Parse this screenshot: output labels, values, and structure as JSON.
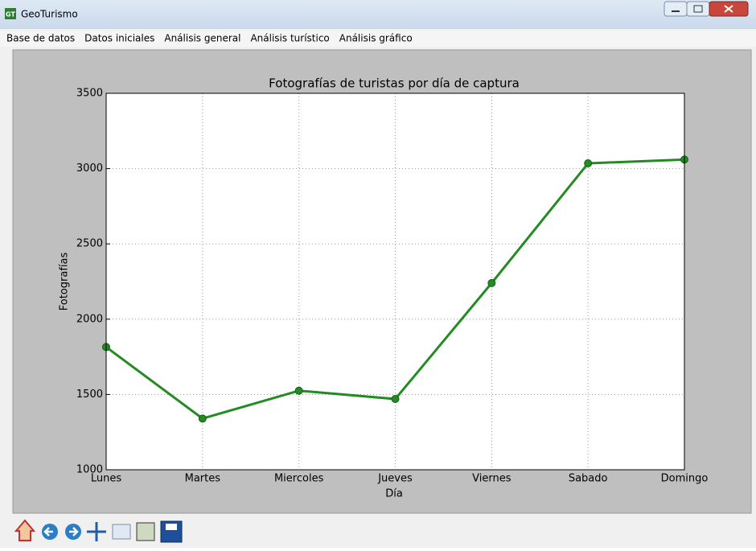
{
  "window": {
    "title": "GeoTurismo",
    "app_icon": "GT"
  },
  "menu": [
    "Base de datos",
    "Datos iniciales",
    "Análisis general",
    "Análisis turístico",
    "Análisis gráfico"
  ],
  "chart_data": {
    "type": "line",
    "title": "Fotografías de turistas por día de captura",
    "x_label": "Día",
    "y_label": "Fotografías",
    "categories": [
      "Lunes",
      "Martes",
      "Miercoles",
      "Jueves",
      "Viernes",
      "Sabado",
      "Domingo"
    ],
    "series": [
      {
        "name": "Fotografías",
        "color": "#228b22",
        "values": [
          1815,
          1340,
          1525,
          1470,
          2240,
          3035,
          3060
        ]
      }
    ],
    "ylim": [
      1000,
      3500
    ],
    "yticks": [
      1000,
      1500,
      2000,
      2500,
      3000,
      3500
    ],
    "grid": true
  }
}
